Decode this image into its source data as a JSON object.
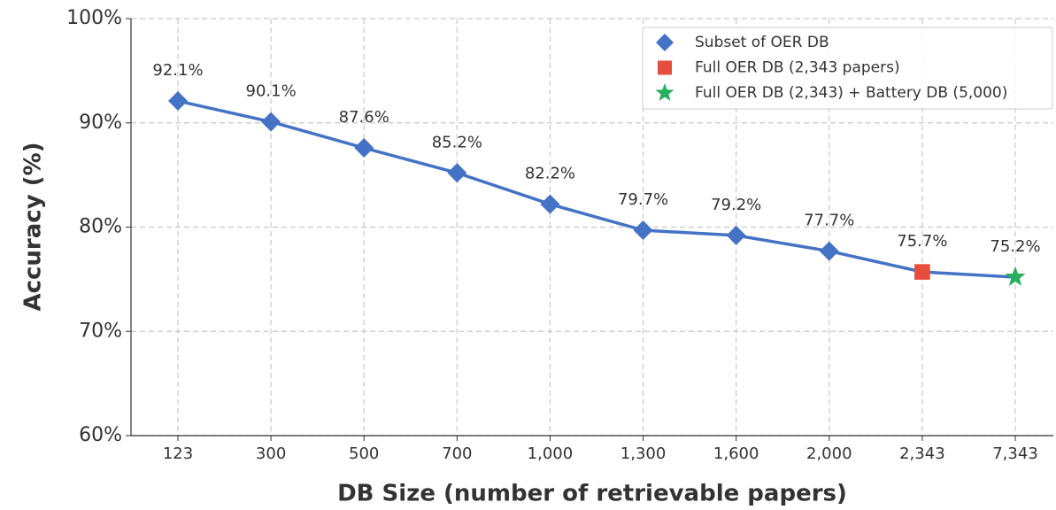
{
  "chart_data": {
    "type": "line",
    "x_label": "DB Size (number of retrievable papers)",
    "y_label": "Accuracy (%)",
    "categories": [
      "123",
      "300",
      "500",
      "700",
      "1,000",
      "1,300",
      "1,600",
      "2,000",
      "2,343",
      "7,343"
    ],
    "line_color": "#4472c4",
    "series": [
      {
        "name": "Subset of OER DB",
        "color": "#4472c4",
        "marker": "diamond",
        "values": [
          92.1,
          90.1,
          87.6,
          85.2,
          82.2,
          79.7,
          79.2,
          77.7,
          null,
          null
        ],
        "value_labels": [
          "92.1%",
          "90.1%",
          "87.6%",
          "85.2%",
          "82.2%",
          "79.7%",
          "79.2%",
          "77.7%",
          null,
          null
        ]
      },
      {
        "name": "Full OER DB (2,343 papers)",
        "color": "#e74c3c",
        "marker": "square",
        "values": [
          null,
          null,
          null,
          null,
          null,
          null,
          null,
          null,
          75.7,
          null
        ],
        "value_labels": [
          null,
          null,
          null,
          null,
          null,
          null,
          null,
          null,
          "75.7%",
          null
        ]
      },
      {
        "name": "Full OER DB (2,343) + Battery DB (5,000)",
        "color": "#27ae60",
        "marker": "star",
        "values": [
          null,
          null,
          null,
          null,
          null,
          null,
          null,
          null,
          null,
          75.2
        ],
        "value_labels": [
          null,
          null,
          null,
          null,
          null,
          null,
          null,
          null,
          null,
          "75.2%"
        ]
      }
    ],
    "ylim": [
      60,
      100
    ],
    "yticks": [
      {
        "value": 60,
        "label": "60%"
      },
      {
        "value": 70,
        "label": "70%"
      },
      {
        "value": 80,
        "label": "80%"
      },
      {
        "value": 90,
        "label": "90%"
      },
      {
        "value": 100,
        "label": "100%"
      }
    ],
    "grid": true,
    "legend": "upper right"
  }
}
